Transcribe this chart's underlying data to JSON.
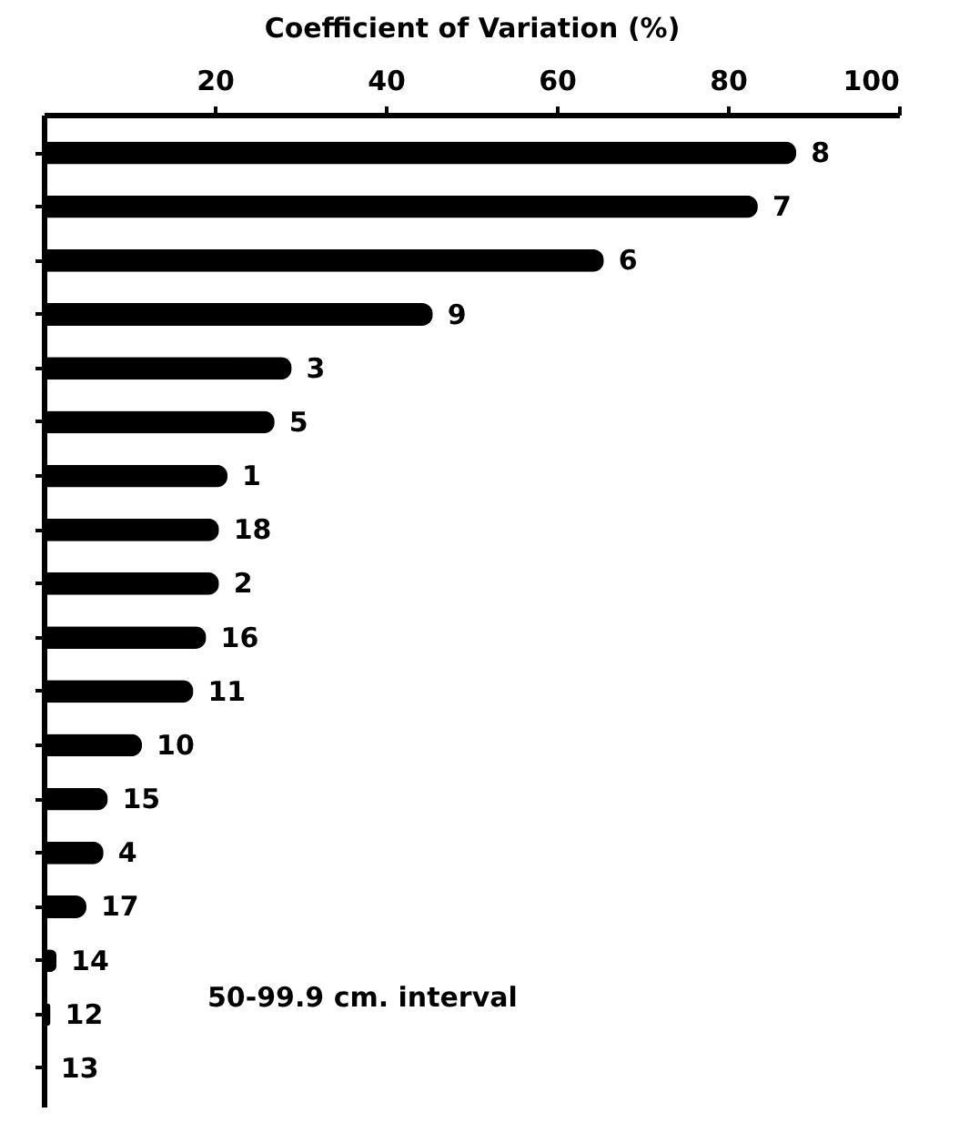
{
  "chart_data": {
    "type": "bar",
    "orientation": "horizontal",
    "xlabel": "Coefficient of Variation (%)",
    "categories": [
      "8",
      "7",
      "6",
      "9",
      "3",
      "5",
      "1",
      "18",
      "2",
      "16",
      "11",
      "10",
      "15",
      "4",
      "17",
      "14",
      "12",
      "13"
    ],
    "values": [
      88,
      83.5,
      65.5,
      45.5,
      29,
      27,
      21.5,
      20.5,
      20.5,
      19,
      17.5,
      11.5,
      7.5,
      7,
      5,
      1.5,
      0.8,
      0.3
    ],
    "color": "#000000",
    "xlim": [
      0,
      100
    ],
    "xticks": [
      20,
      40,
      60,
      80,
      100
    ],
    "grid": false,
    "tick_labels": "x",
    "annotations": [
      "50-99.9 cm. interval"
    ]
  }
}
